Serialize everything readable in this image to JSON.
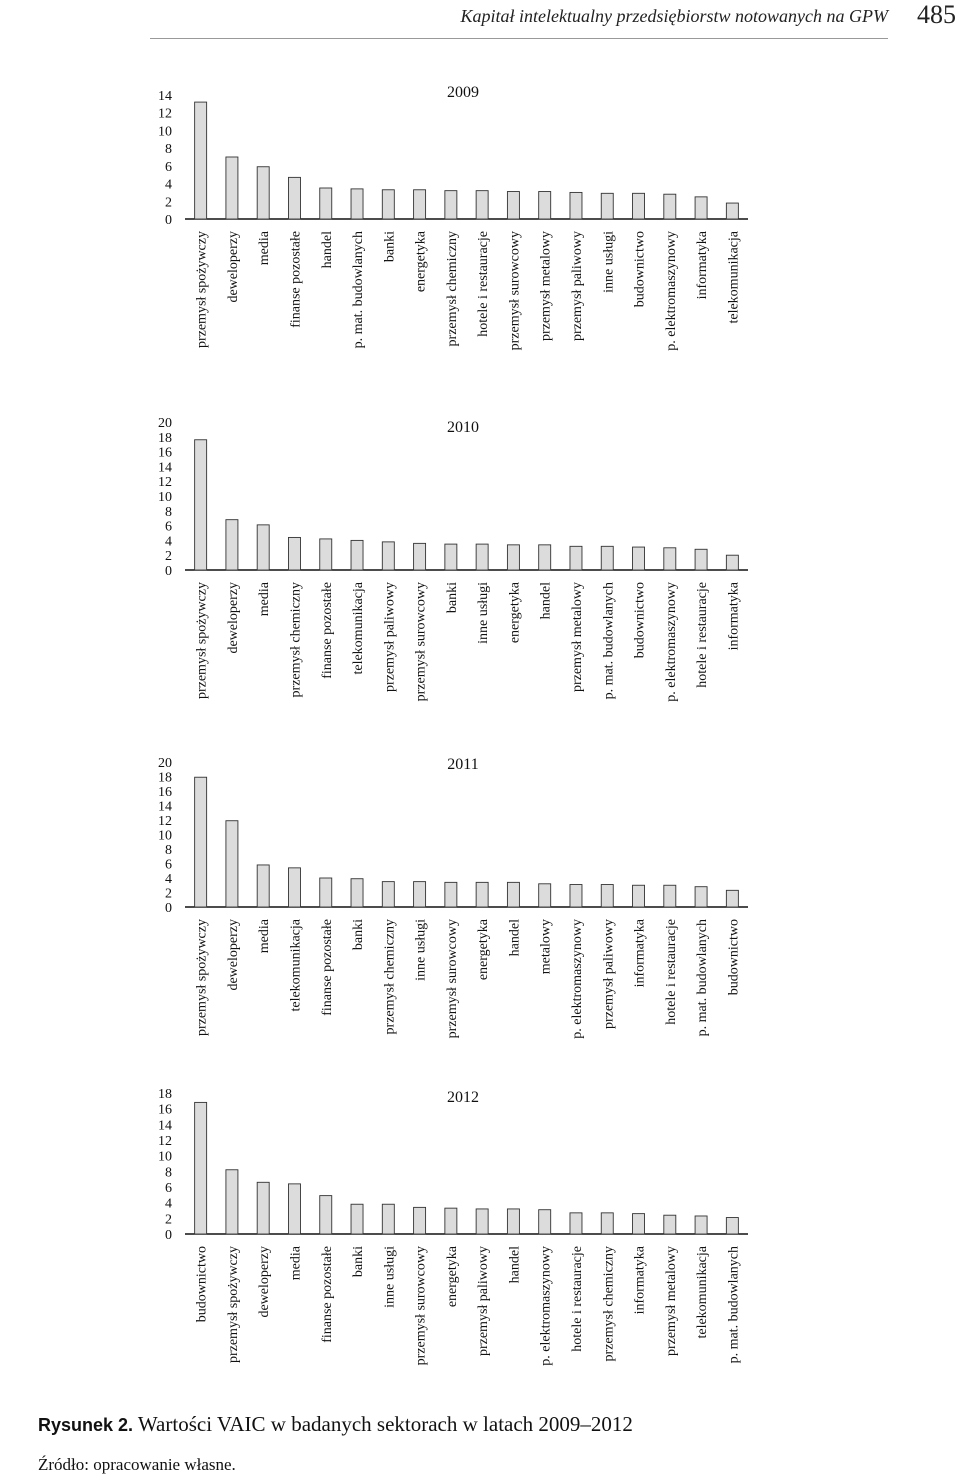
{
  "header": {
    "title": "Kapitał intelektualny przedsiębiorstw notowanych na GPW",
    "page_number": "485"
  },
  "chart_data": [
    {
      "type": "bar",
      "title": "2009",
      "ylim": [
        0,
        14
      ],
      "yticks": [
        0,
        2,
        4,
        6,
        8,
        10,
        12,
        14
      ],
      "categories": [
        "przemysł spożywczy",
        "deweloperzy",
        "media",
        "finanse pozostałe",
        "handel",
        "p. mat. budowlanych",
        "banki",
        "energetyka",
        "przemysł chemiczny",
        "hotele i restauracje",
        "przemysł surowcowy",
        "przemysł metalowy",
        "przemysł paliwowy",
        "inne usługi",
        "budownictwo",
        "p. elektromaszynowy",
        "informatyka",
        "telekomunikacja"
      ],
      "values": [
        13.2,
        7.0,
        5.9,
        4.7,
        3.5,
        3.4,
        3.3,
        3.3,
        3.2,
        3.2,
        3.1,
        3.1,
        3.0,
        2.9,
        2.9,
        2.8,
        2.5,
        1.8
      ]
    },
    {
      "type": "bar",
      "title": "2010",
      "ylim": [
        0,
        20
      ],
      "yticks": [
        0,
        2,
        4,
        6,
        8,
        10,
        12,
        14,
        16,
        18,
        20
      ],
      "categories": [
        "przemysł spożywczy",
        "deweloperzy",
        "media",
        "przemysł chemiczny",
        "finanse pozostałe",
        "telekomunikacja",
        "przemysł paliwowy",
        "przemysł surowcowy",
        "banki",
        "inne usługi",
        "energetyka",
        "handel",
        "przemysł metalowy",
        "p. mat. budowlanych",
        "budownictwo",
        "p. elektromaszynowy",
        "hotele i restauracje",
        "informatyka"
      ],
      "values": [
        17.6,
        6.8,
        6.1,
        4.4,
        4.2,
        4.0,
        3.8,
        3.6,
        3.5,
        3.5,
        3.4,
        3.4,
        3.2,
        3.2,
        3.1,
        3.0,
        2.8,
        2.0
      ]
    },
    {
      "type": "bar",
      "title": "2011",
      "ylim": [
        0,
        20
      ],
      "yticks": [
        0,
        2,
        4,
        6,
        8,
        10,
        12,
        14,
        16,
        18,
        20
      ],
      "categories": [
        "przemysł spożywczy",
        "deweloperzy",
        "media",
        "telekomunikacja",
        "finanse pozostałe",
        "banki",
        "przemysł chemiczny",
        "inne usługi",
        "przemysł surowcowy",
        "energetyka",
        "handel",
        "metalowy",
        "p. elektromaszynowy",
        "przemysł paliwowy",
        "informatyka",
        "hotele i restauracje",
        "p. mat. budowlanych",
        "budownictwo"
      ],
      "values": [
        17.9,
        11.9,
        5.8,
        5.4,
        4.0,
        3.9,
        3.5,
        3.5,
        3.4,
        3.4,
        3.4,
        3.2,
        3.1,
        3.1,
        3.0,
        3.0,
        2.8,
        2.3
      ]
    },
    {
      "type": "bar",
      "title": "2012",
      "ylim": [
        0,
        18
      ],
      "yticks": [
        0,
        2,
        4,
        6,
        8,
        10,
        12,
        14,
        16,
        18
      ],
      "categories": [
        "budownictwo",
        "przemysł spożywczy",
        "deweloperzy",
        "media",
        "finanse pozostałe",
        "banki",
        "inne usługi",
        "przemysł surowcowy",
        "energetyka",
        "przemysł paliwowy",
        "handel",
        "p. elektromaszynowy",
        "hotele i restauracje",
        "przemysł chemiczny",
        "informatyka",
        "przemysł metalowy",
        "telekomunikacja",
        "p. mat. budowlanych"
      ],
      "values": [
        16.8,
        8.2,
        6.6,
        6.4,
        4.9,
        3.8,
        3.8,
        3.4,
        3.3,
        3.2,
        3.2,
        3.1,
        2.7,
        2.7,
        2.6,
        2.4,
        2.3,
        2.1
      ]
    }
  ],
  "caption": {
    "label": "Rysunek 2.",
    "text": "Wartości VAIC w badanych sektorach w latach 2009–2012"
  },
  "source": "Źródło: opracowanie własne.",
  "colors": {
    "bar_fill": "#dcdcdc",
    "bar_stroke": "#333333",
    "axis": "#111111"
  }
}
